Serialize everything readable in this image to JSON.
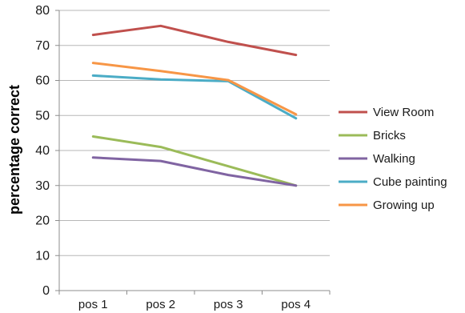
{
  "chart_data": {
    "type": "line",
    "title": "",
    "xlabel": "",
    "ylabel": "percentage correct",
    "ylim": [
      0,
      80
    ],
    "yticks": [
      0,
      10,
      20,
      30,
      40,
      50,
      60,
      70,
      80
    ],
    "categories": [
      "pos 1",
      "pos 2",
      "pos 3",
      "pos 4"
    ],
    "grid": "horizontal",
    "legend_position": "right",
    "series": [
      {
        "name": "View Room",
        "color": "#C0504D",
        "values": [
          73,
          75.6,
          71,
          67.3
        ]
      },
      {
        "name": "Bricks",
        "color": "#9BBB59",
        "values": [
          44,
          41,
          35.5,
          30
        ]
      },
      {
        "name": "Walking",
        "color": "#8064A2",
        "values": [
          38,
          37,
          33,
          30
        ]
      },
      {
        "name": "Cube painting",
        "color": "#4BACC6",
        "values": [
          61.4,
          60.3,
          59.8,
          49.2
        ]
      },
      {
        "name": "Growing up",
        "color": "#F79646",
        "values": [
          65,
          62.7,
          60.1,
          50.3
        ]
      }
    ]
  }
}
